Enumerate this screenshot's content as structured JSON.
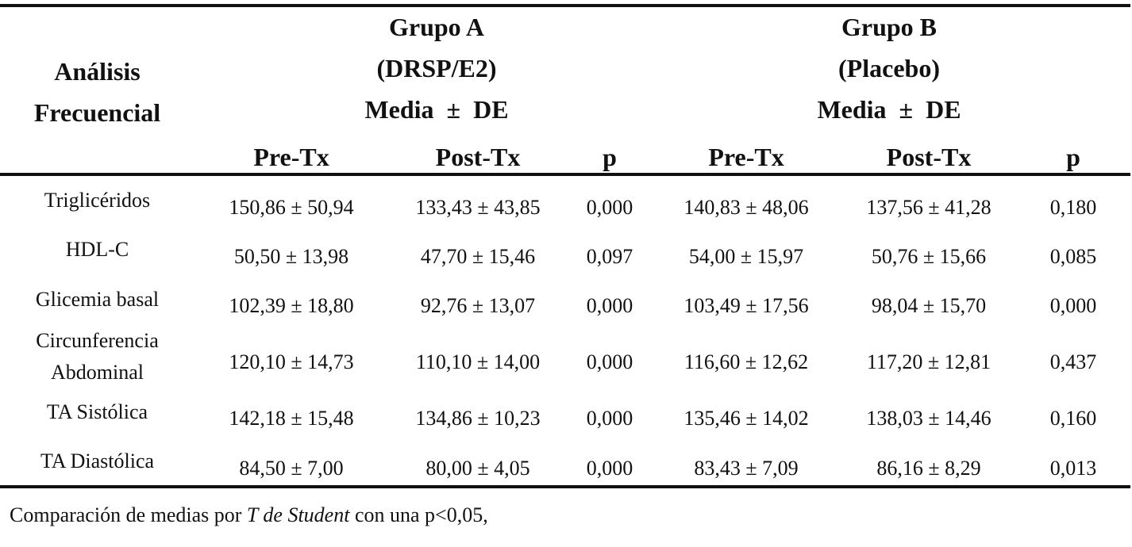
{
  "header": {
    "analisis": [
      "Análisis",
      "Frecuencial"
    ],
    "group_a": [
      "Grupo A",
      "(DRSP/E2)",
      "Media  ±  DE"
    ],
    "group_b": [
      "Grupo B",
      "(Placebo)",
      "Media  ±  DE"
    ],
    "sub": [
      "Pre-Tx",
      "Post-Tx",
      "p",
      "Pre-Tx",
      "Post-Tx",
      "p"
    ]
  },
  "rows": [
    {
      "label": [
        "Triglicéridos"
      ],
      "a_pre": "150,86 ± 50,94",
      "a_post": "133,43 ± 43,85",
      "a_p": "0,000",
      "b_pre": "140,83 ± 48,06",
      "b_post": "137,56 ± 41,28",
      "b_p": "0,180"
    },
    {
      "label": [
        "HDL-C"
      ],
      "a_pre": "50,50 ± 13,98",
      "a_post": "47,70 ± 15,46",
      "a_p": "0,097",
      "b_pre": "54,00 ± 15,97",
      "b_post": "50,76 ± 15,66",
      "b_p": "0,085"
    },
    {
      "label": [
        "Glicemia basal"
      ],
      "a_pre": "102,39 ± 18,80",
      "a_post": "92,76 ± 13,07",
      "a_p": "0,000",
      "b_pre": "103,49 ± 17,56",
      "b_post": "98,04 ± 15,70",
      "b_p": "0,000"
    },
    {
      "label": [
        "Circunferencia",
        "Abdominal"
      ],
      "a_pre": "120,10 ± 14,73",
      "a_post": "110,10 ± 14,00",
      "a_p": "0,000",
      "b_pre": "116,60 ± 12,62",
      "b_post": "117,20 ± 12,81",
      "b_p": "0,437"
    },
    {
      "label": [
        "TA Sistólica"
      ],
      "a_pre": "142,18 ± 15,48",
      "a_post": "134,86 ± 10,23",
      "a_p": "0,000",
      "b_pre": "135,46 ± 14,02",
      "b_post": "138,03 ± 14,46",
      "b_p": "0,160"
    },
    {
      "label": [
        "TA Diastólica"
      ],
      "a_pre": "84,50 ± 7,00",
      "a_post": "80,00 ± 4,05",
      "a_p": "0,000",
      "b_pre": "83,43 ± 7,09",
      "b_post": "86,16 ± 8,29",
      "b_p": "0,013"
    }
  ],
  "footnote": {
    "before": "Comparación de medias por ",
    "italic": "T de Student",
    "after": " con una p<0,05,"
  }
}
